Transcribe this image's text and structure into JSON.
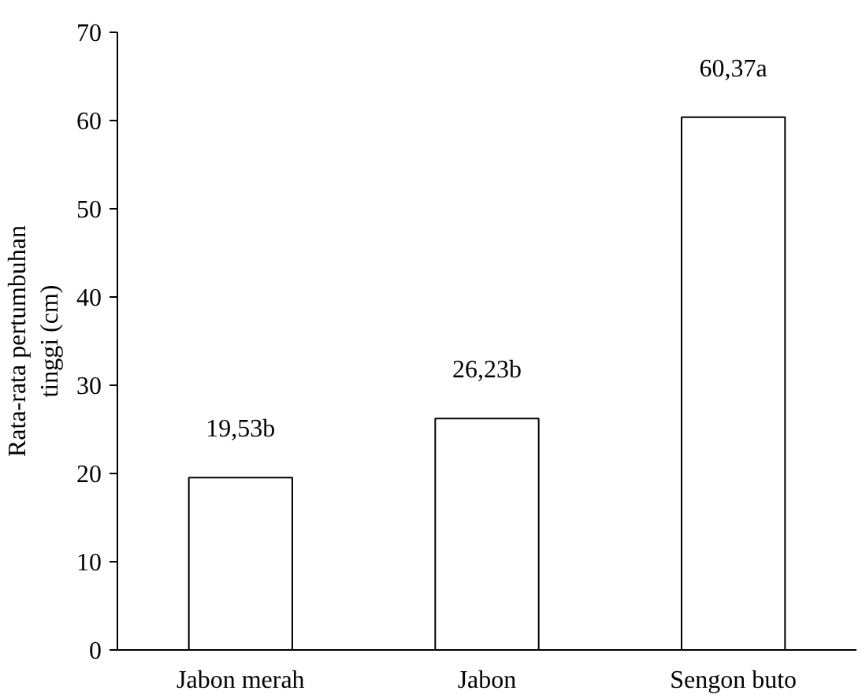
{
  "chart_data": {
    "type": "bar",
    "ylabel": "Rata-rata pertumbuhan tinggi (cm)",
    "categories": [
      "Jabon merah",
      "Jabon",
      "Sengon buto"
    ],
    "values": [
      19.53,
      26.23,
      60.37
    ],
    "color": "#ffffff",
    "value_labels": [
      "19,53b",
      "26,23b",
      "60,37a"
    ],
    "ylim": [
      0,
      70
    ],
    "yticks": [
      0,
      10,
      20,
      30,
      40,
      50,
      60,
      70
    ],
    "grid": false
  }
}
